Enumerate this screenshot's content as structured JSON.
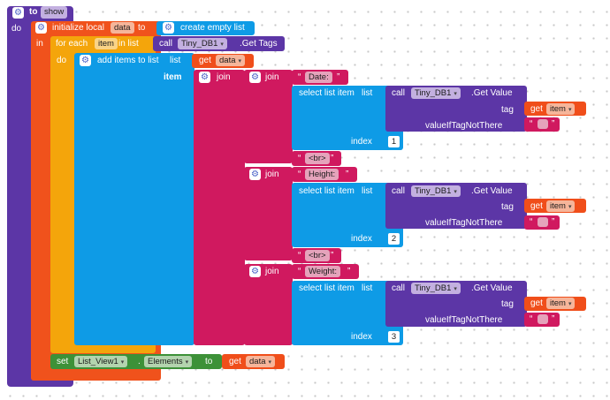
{
  "event": {
    "keyword": "to",
    "name": "show",
    "do": "do"
  },
  "init_local": {
    "label": "initialize local",
    "var": "data",
    "to": "to",
    "in": "in"
  },
  "create_empty_list": "create empty list",
  "for_each": {
    "label": "for each",
    "var": "item",
    "in_list": "in list",
    "do": "do"
  },
  "get_tags": {
    "call": "call",
    "component": "Tiny_DB1",
    "method": ".Get Tags"
  },
  "add_items": {
    "label": "add items to list",
    "list_label": "list",
    "item_label": "item"
  },
  "get_data": {
    "get": "get",
    "var": "data"
  },
  "join_label": "join",
  "quote_open": "“",
  "quote_close": "”",
  "select_list_item": {
    "label": "select list item",
    "list_label": "list",
    "index_label": "index"
  },
  "get_value": {
    "call": "call",
    "component": "Tiny_DB1",
    "method": ".Get Value",
    "tag_label": "tag",
    "not_there_label": "valueIfTagNotThere"
  },
  "get_item": {
    "get": "get",
    "var": "item"
  },
  "texts": {
    "date": "Date:",
    "height": "Height:",
    "weight": "Weight:",
    "br": "<br>"
  },
  "indexes": {
    "one": "1",
    "two": "2",
    "three": "3"
  },
  "set_block": {
    "set": "set",
    "component": "List_View1",
    "property": "Elements",
    "to": "to"
  },
  "colors": {
    "procedure": "#5c36a6",
    "variable": "#f0521c",
    "control": "#f4a50b",
    "list": "#0e9be6",
    "text": "#d0195f",
    "component": "#3d9138",
    "tinydb": "#5c36a6",
    "bg": "#ffffff"
  }
}
